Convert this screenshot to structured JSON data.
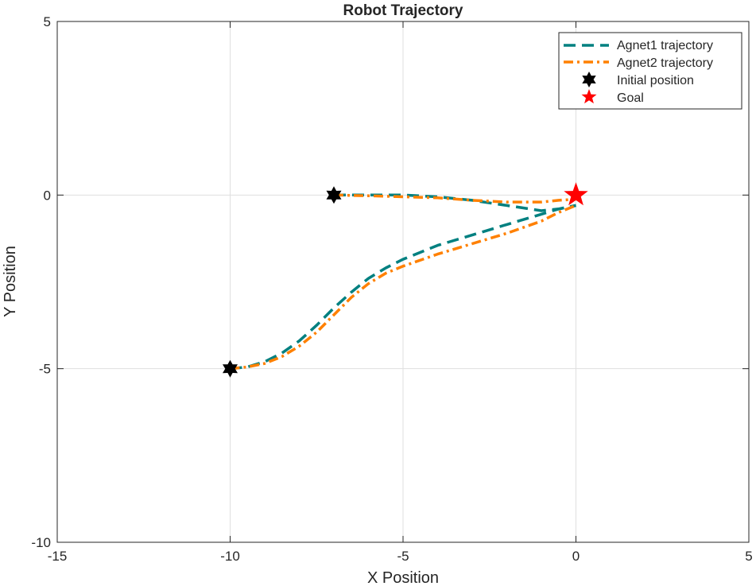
{
  "chart_data": {
    "type": "line",
    "title": "Robot Trajectory",
    "xlabel": "X Position",
    "ylabel": "Y Position",
    "xlim": [
      -15,
      5
    ],
    "ylim": [
      -10,
      5
    ],
    "xticks": [
      -15,
      -10,
      -5,
      0,
      5
    ],
    "yticks": [
      -10,
      -5,
      0,
      5
    ],
    "xtick_labels": [
      "-15",
      "-10",
      "-5",
      "0",
      "5"
    ],
    "ytick_labels": [
      "-10",
      "-5",
      "0",
      "5"
    ],
    "grid": true,
    "legend_position": "top-right",
    "series": [
      {
        "name": "Agnet1 trajectory",
        "style": "dashed",
        "color": "#008080",
        "paths": [
          {
            "x": [
              -7.0,
              -6.0,
              -5.0,
              -4.0,
              -3.0,
              -2.0,
              -1.0,
              -0.5,
              0.0
            ],
            "y": [
              0.0,
              0.0,
              0.0,
              -0.05,
              -0.15,
              -0.3,
              -0.45,
              -0.4,
              -0.3
            ]
          },
          {
            "x": [
              -10.0,
              -9.5,
              -9.0,
              -8.5,
              -8.0,
              -7.5,
              -7.0,
              -6.5,
              -6.0,
              -5.5,
              -5.0,
              -4.0,
              -3.0,
              -2.0,
              -1.0,
              -0.5,
              0.0
            ],
            "y": [
              -5.0,
              -4.95,
              -4.8,
              -4.55,
              -4.2,
              -3.75,
              -3.25,
              -2.8,
              -2.4,
              -2.1,
              -1.85,
              -1.45,
              -1.15,
              -0.85,
              -0.55,
              -0.4,
              -0.3
            ]
          }
        ]
      },
      {
        "name": "Agnet2 trajectory",
        "style": "dashdot",
        "color": "#ff8000",
        "paths": [
          {
            "x": [
              -7.0,
              -6.0,
              -5.0,
              -4.0,
              -3.0,
              -2.0,
              -1.0,
              -0.5,
              0.0
            ],
            "y": [
              0.0,
              -0.02,
              -0.05,
              -0.08,
              -0.15,
              -0.2,
              -0.2,
              -0.15,
              -0.12
            ]
          },
          {
            "x": [
              -10.0,
              -9.5,
              -9.0,
              -8.5,
              -8.0,
              -7.5,
              -7.0,
              -6.5,
              -6.0,
              -5.5,
              -5.0,
              -4.0,
              -3.0,
              -2.0,
              -1.0,
              -0.5,
              0.0
            ],
            "y": [
              -5.0,
              -4.95,
              -4.85,
              -4.65,
              -4.35,
              -3.95,
              -3.45,
              -2.95,
              -2.55,
              -2.25,
              -2.05,
              -1.7,
              -1.4,
              -1.1,
              -0.75,
              -0.5,
              -0.3
            ]
          }
        ]
      }
    ],
    "markers": [
      {
        "name": "Initial position",
        "symbol": "hexagram",
        "color": "#000000",
        "points": [
          [
            -7,
            0
          ],
          [
            -10,
            -5
          ]
        ]
      },
      {
        "name": "Goal",
        "symbol": "pentagram",
        "color": "#ff0000",
        "points": [
          [
            0,
            0
          ]
        ]
      }
    ]
  }
}
